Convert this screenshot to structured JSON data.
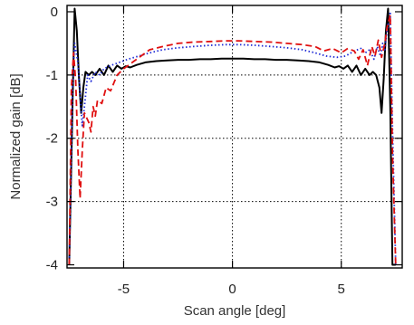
{
  "chart_data": {
    "type": "line",
    "title": "",
    "xlabel": "Scan angle [deg]",
    "ylabel": "Normalized gain [dB]",
    "xlim": [
      -7.6,
      7.8
    ],
    "ylim": [
      -4.05,
      0.1
    ],
    "xticks": [
      -5,
      0,
      5
    ],
    "xtick_labels": [
      "-5",
      "0",
      "5"
    ],
    "yticks": [
      0,
      -1,
      -2,
      -3,
      -4
    ],
    "ytick_labels": [
      "0",
      "-1",
      "-2",
      "-3",
      "-4"
    ],
    "grid": true,
    "legend": "none",
    "series": [
      {
        "style": "solid",
        "color": "#000000",
        "x": [
          -7.5,
          -7.35,
          -7.25,
          -7.15,
          -7.05,
          -6.95,
          -6.85,
          -6.75,
          -6.6,
          -6.45,
          -6.3,
          -6.1,
          -5.9,
          -5.7,
          -5.5,
          -5.3,
          -5.1,
          -4.9,
          -4.7,
          -4.4,
          -4.0,
          -3.5,
          -3.0,
          -2.5,
          -2.0,
          -1.5,
          -1.0,
          -0.5,
          0.0,
          0.5,
          1.0,
          1.5,
          2.0,
          2.5,
          3.0,
          3.5,
          4.0,
          4.4,
          4.7,
          4.9,
          5.1,
          5.3,
          5.5,
          5.7,
          5.9,
          6.1,
          6.3,
          6.45,
          6.6,
          6.75,
          6.85,
          6.95,
          7.05,
          7.15,
          7.25,
          7.35,
          7.5
        ],
        "y": [
          -4.0,
          -1.5,
          0.05,
          -0.3,
          -1.05,
          -1.6,
          -1.2,
          -0.95,
          -1.0,
          -0.95,
          -1.0,
          -0.9,
          -1.0,
          -0.85,
          -0.95,
          -0.85,
          -0.9,
          -0.86,
          -0.88,
          -0.84,
          -0.8,
          -0.78,
          -0.77,
          -0.76,
          -0.76,
          -0.75,
          -0.75,
          -0.74,
          -0.74,
          -0.74,
          -0.75,
          -0.75,
          -0.76,
          -0.76,
          -0.77,
          -0.78,
          -0.8,
          -0.84,
          -0.88,
          -0.86,
          -0.9,
          -0.85,
          -0.95,
          -0.85,
          -1.0,
          -0.9,
          -1.0,
          -0.95,
          -1.0,
          -1.2,
          -1.6,
          -1.05,
          -0.3,
          0.05,
          -1.5,
          -4.0,
          -4.0
        ]
      },
      {
        "style": "dotted",
        "color": "#1f2bd6",
        "x": [
          -7.5,
          -7.35,
          -7.25,
          -7.1,
          -7.0,
          -6.9,
          -6.8,
          -6.65,
          -6.5,
          -6.3,
          -6.1,
          -5.9,
          -5.6,
          -5.2,
          -4.8,
          -4.3,
          -3.8,
          -3.2,
          -2.5,
          -1.8,
          -1.0,
          -0.3,
          0.3,
          1.0,
          1.8,
          2.5,
          3.2,
          3.8,
          4.3,
          4.8,
          5.2,
          5.6,
          5.9,
          6.1,
          6.3,
          6.5,
          6.65,
          6.8,
          6.9,
          7.0,
          7.1,
          7.25,
          7.35,
          7.5
        ],
        "y": [
          -4.0,
          -1.2,
          -0.5,
          -0.8,
          -1.3,
          -1.8,
          -1.5,
          -1.0,
          -1.1,
          -0.95,
          -1.0,
          -0.9,
          -0.85,
          -0.8,
          -0.75,
          -0.7,
          -0.65,
          -0.6,
          -0.57,
          -0.55,
          -0.53,
          -0.52,
          -0.52,
          -0.53,
          -0.55,
          -0.57,
          -0.6,
          -0.65,
          -0.7,
          -0.72,
          -0.7,
          -0.62,
          -0.58,
          -0.65,
          -0.6,
          -0.75,
          -0.55,
          -0.7,
          -0.5,
          -0.6,
          -0.3,
          0.0,
          -1.8,
          -4.0
        ]
      },
      {
        "style": "dashed",
        "color": "#e01010",
        "x": [
          -7.5,
          -7.4,
          -7.3,
          -7.2,
          -7.1,
          -7.0,
          -6.9,
          -6.8,
          -6.6,
          -6.5,
          -6.4,
          -6.3,
          -6.2,
          -6.0,
          -5.8,
          -5.6,
          -5.3,
          -5.0,
          -4.6,
          -4.2,
          -3.8,
          -3.2,
          -2.5,
          -1.8,
          -1.0,
          -0.3,
          0.3,
          1.0,
          1.8,
          2.5,
          3.2,
          3.8,
          4.2,
          4.6,
          5.0,
          5.3,
          5.6,
          5.8,
          6.0,
          6.2,
          6.4,
          6.55,
          6.7,
          6.85,
          7.0,
          7.1,
          7.25,
          7.35,
          7.5
        ],
        "y": [
          -4.0,
          -1.2,
          -0.65,
          -1.1,
          -2.2,
          -2.95,
          -2.2,
          -1.6,
          -1.75,
          -1.9,
          -1.5,
          -1.65,
          -1.4,
          -1.45,
          -1.2,
          -1.25,
          -1.0,
          -0.9,
          -0.8,
          -0.7,
          -0.6,
          -0.55,
          -0.5,
          -0.48,
          -0.47,
          -0.46,
          -0.46,
          -0.47,
          -0.48,
          -0.5,
          -0.52,
          -0.55,
          -0.62,
          -0.58,
          -0.65,
          -0.58,
          -0.62,
          -0.75,
          -0.6,
          -0.85,
          -0.55,
          -0.7,
          -0.45,
          -0.72,
          -0.5,
          -0.25,
          -0.05,
          -2.2,
          -4.0
        ]
      }
    ]
  }
}
